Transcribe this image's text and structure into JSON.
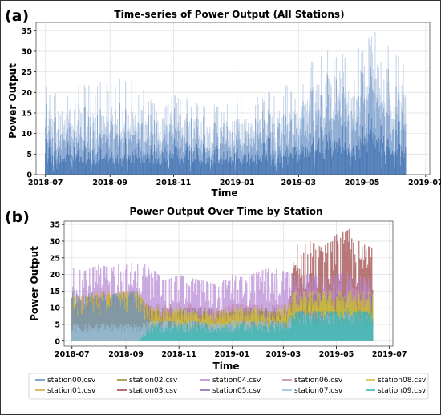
{
  "panels": {
    "a": {
      "letter": "(a)"
    },
    "b": {
      "letter": "(b)"
    }
  },
  "chart_data": [
    {
      "type": "area",
      "title": "Time-series of Power Output (All Stations)",
      "xlabel": "Time",
      "ylabel": "Power Output",
      "xlim": [
        "2018-06-22",
        "2019-07-05"
      ],
      "ylim": [
        0,
        37
      ],
      "xticks": [
        "2018-07",
        "2018-09",
        "2018-11",
        "2019-01",
        "2019-03",
        "2019-05",
        "2019-07"
      ],
      "yticks": [
        0,
        5,
        10,
        15,
        20,
        25,
        30,
        35
      ],
      "grid": true,
      "legend": "none",
      "colors": {
        "fill_light": "#c9d7ea",
        "fill_mid": "#8aa9d2",
        "fill_dark": "#4a78b5"
      },
      "x": [
        "2018-07-01",
        "2018-07-15",
        "2018-08-01",
        "2018-08-15",
        "2018-09-01",
        "2018-09-15",
        "2018-10-01",
        "2018-10-15",
        "2018-11-01",
        "2018-11-15",
        "2018-12-01",
        "2018-12-15",
        "2019-01-01",
        "2019-01-15",
        "2019-02-01",
        "2019-02-15",
        "2019-03-01",
        "2019-03-15",
        "2019-04-01",
        "2019-04-15",
        "2019-05-01",
        "2019-05-15",
        "2019-06-01",
        "2019-06-12"
      ],
      "y": [
        22,
        21,
        23,
        22,
        24,
        24,
        22,
        18,
        20,
        19,
        18,
        17,
        20,
        19,
        21,
        22,
        21,
        30,
        31,
        29,
        33,
        35,
        30,
        29
      ],
      "y_typical": [
        15,
        14,
        15,
        14,
        15,
        16,
        15,
        12,
        14,
        13,
        12,
        11,
        13,
        12,
        14,
        15,
        14,
        22,
        23,
        21,
        24,
        26,
        22,
        21
      ]
    },
    {
      "type": "area",
      "title": "Power Output Over Time by Station",
      "xlabel": "Time",
      "ylabel": "Power Output",
      "xlim": [
        "2018-06-22",
        "2019-07-05"
      ],
      "ylim": [
        -1.5,
        36
      ],
      "xticks": [
        "2018-07",
        "2018-09",
        "2018-11",
        "2019-01",
        "2019-03",
        "2019-05",
        "2019-07"
      ],
      "yticks": [
        0,
        5,
        10,
        15,
        20,
        25,
        30,
        35
      ],
      "grid": true,
      "legend": "bottom",
      "x": [
        "2018-07-01",
        "2018-07-15",
        "2018-08-01",
        "2018-08-15",
        "2018-09-01",
        "2018-09-15",
        "2018-10-01",
        "2018-10-15",
        "2018-11-01",
        "2018-11-15",
        "2018-12-01",
        "2018-12-15",
        "2019-01-01",
        "2019-01-15",
        "2019-02-01",
        "2019-02-15",
        "2019-03-01",
        "2019-03-15",
        "2019-04-01",
        "2019-04-15",
        "2019-05-01",
        "2019-05-15",
        "2019-06-01",
        "2019-06-12"
      ],
      "series": [
        {
          "name": "station00.csv",
          "color": "#6b8fc7",
          "values": [
            15,
            14,
            15,
            14,
            15,
            15,
            6,
            6,
            6,
            6,
            6,
            5,
            6,
            6,
            6,
            6,
            6,
            9,
            9,
            9,
            9,
            9,
            9,
            9
          ]
        },
        {
          "name": "station01.csv",
          "color": "#d6a84a",
          "values": [
            15,
            14,
            15,
            15,
            15,
            15,
            8,
            8,
            8,
            8,
            8,
            7,
            8,
            8,
            8,
            8,
            8,
            12,
            12,
            12,
            12,
            12,
            12,
            12
          ]
        },
        {
          "name": "station02.csv",
          "color": "#9b8a3c",
          "values": [
            14,
            13,
            14,
            14,
            14,
            14,
            9,
            9,
            9,
            9,
            9,
            8,
            9,
            9,
            9,
            9,
            9,
            13,
            13,
            13,
            13,
            13,
            13,
            13
          ]
        },
        {
          "name": "station03.csv",
          "color": "#a04a4a",
          "values": [
            0,
            0,
            0,
            0,
            0,
            0,
            0,
            0,
            0,
            0,
            0,
            0,
            0,
            0,
            0,
            0,
            0,
            29,
            30,
            28,
            32,
            34,
            29,
            28
          ]
        },
        {
          "name": "station04.csv",
          "color": "#b98ad6",
          "values": [
            22,
            21,
            23,
            22,
            24,
            24,
            22,
            18,
            20,
            19,
            18,
            17,
            20,
            19,
            21,
            22,
            21,
            20,
            20,
            19,
            20,
            21,
            19,
            19
          ]
        },
        {
          "name": "station05.csv",
          "color": "#8a6ab0",
          "values": [
            13,
            12,
            13,
            12,
            13,
            13,
            10,
            10,
            10,
            10,
            10,
            9,
            10,
            10,
            10,
            10,
            10,
            14,
            14,
            14,
            14,
            14,
            14,
            14
          ]
        },
        {
          "name": "station06.csv",
          "color": "#c48aa8",
          "values": [
            12,
            11,
            12,
            11,
            12,
            12,
            11,
            11,
            11,
            11,
            10,
            10,
            11,
            11,
            11,
            11,
            11,
            15,
            15,
            15,
            16,
            16,
            15,
            15
          ]
        },
        {
          "name": "station07.csv",
          "color": "#9ac0d8",
          "values": [
            5,
            5,
            5,
            5,
            5,
            5,
            6,
            6,
            6,
            6,
            6,
            5,
            6,
            6,
            6,
            6,
            6,
            8,
            8,
            8,
            8,
            8,
            8,
            8
          ]
        },
        {
          "name": "station08.csv",
          "color": "#c8c23a",
          "values": [
            14,
            13,
            14,
            14,
            14,
            14,
            10,
            10,
            10,
            10,
            10,
            9,
            10,
            10,
            10,
            10,
            10,
            15,
            15,
            15,
            15,
            15,
            15,
            15
          ]
        },
        {
          "name": "station09.csv",
          "color": "#3ab8b0",
          "values": [
            0,
            0,
            0,
            0,
            0,
            0,
            5,
            5,
            5,
            5,
            5,
            4,
            5,
            5,
            5,
            5,
            5,
            9,
            9,
            9,
            9,
            10,
            9,
            9
          ]
        }
      ]
    }
  ]
}
